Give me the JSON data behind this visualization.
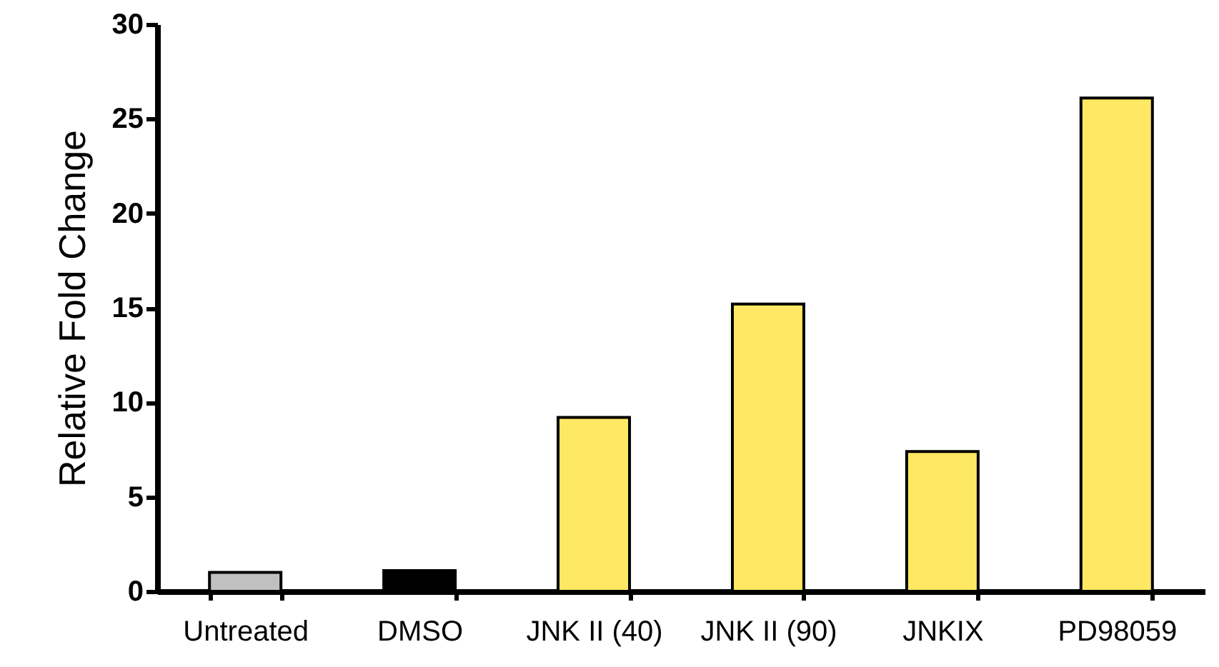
{
  "chart_data": {
    "type": "bar",
    "ylabel": "Relative Fold Change",
    "categories": [
      "Untreated",
      "DMSO",
      "JNK II (40)",
      "JNK II (90)",
      "JNKIX",
      "PD98059"
    ],
    "values": [
      1.0,
      1.1,
      9.2,
      15.2,
      7.4,
      26.1
    ],
    "colors": [
      "#c0c0c0",
      "#000000",
      "#ffe863",
      "#ffe863",
      "#ffe863",
      "#ffe863"
    ],
    "ylim": [
      0,
      30
    ],
    "yticks": [
      0,
      5,
      10,
      15,
      20,
      25,
      30
    ],
    "grid": false
  }
}
